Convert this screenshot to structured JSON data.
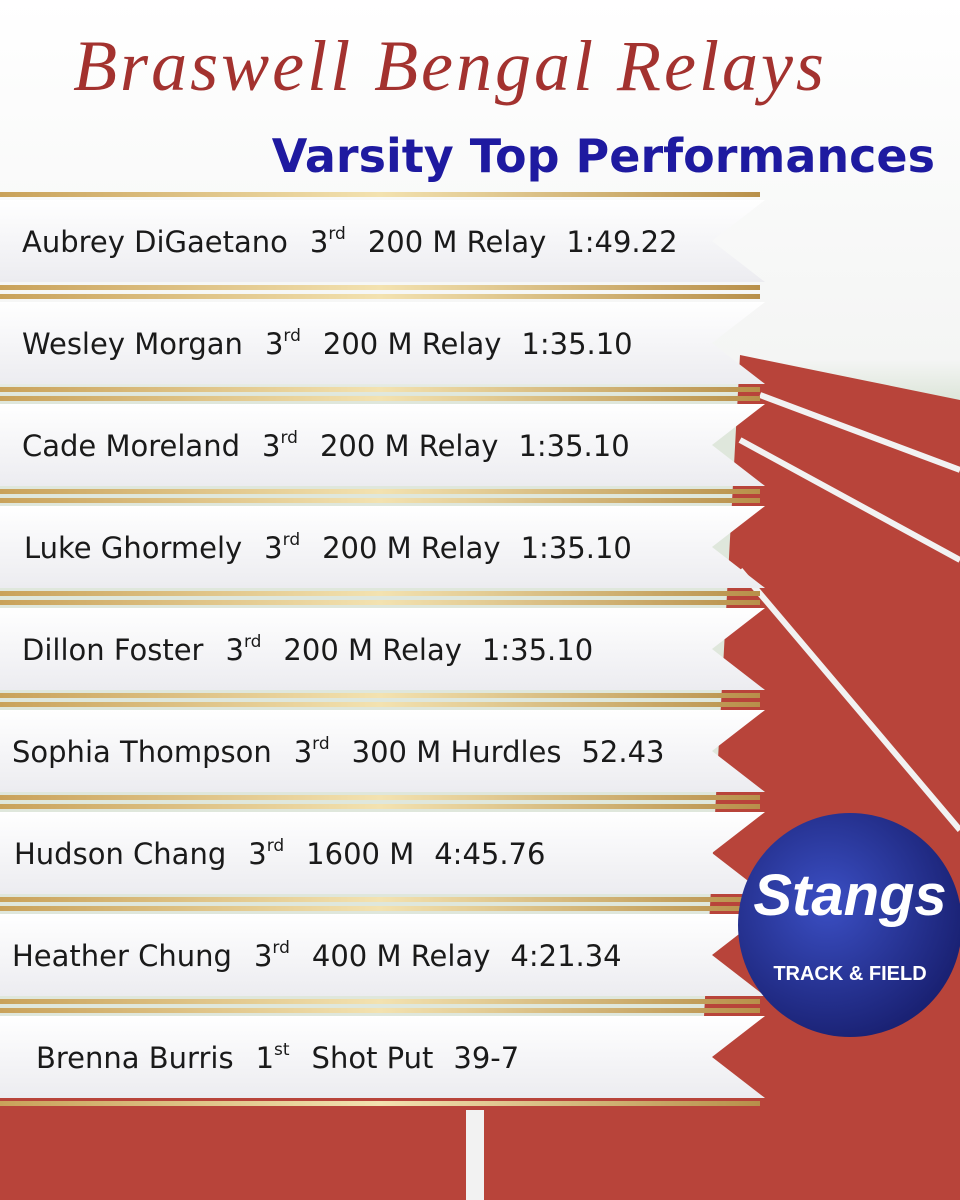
{
  "header": {
    "title": "Braswell Bengal Relays",
    "subtitle": "Varsity Top Performances"
  },
  "entries": [
    {
      "name": "Aubrey DiGaetano",
      "place": "3",
      "suffix": "rd",
      "event": "200 M Relay",
      "result": "1:49.22"
    },
    {
      "name": "Wesley Morgan",
      "place": "3",
      "suffix": "rd",
      "event": "200 M Relay",
      "result": "1:35.10"
    },
    {
      "name": "Cade Moreland",
      "place": "3",
      "suffix": "rd",
      "event": "200 M Relay",
      "result": "1:35.10"
    },
    {
      "name": "Luke Ghormely",
      "place": "3",
      "suffix": "rd",
      "event": "200 M Relay",
      "result": "1:35.10"
    },
    {
      "name": "Dillon Foster",
      "place": "3",
      "suffix": "rd",
      "event": "200 M Relay",
      "result": "1:35.10"
    },
    {
      "name": "Sophia Thompson",
      "place": "3",
      "suffix": "rd",
      "event": "300 M Hurdles",
      "result": "52.43"
    },
    {
      "name": "Hudson Chang",
      "place": "3",
      "suffix": "rd",
      "event": "1600 M",
      "result": "4:45.76"
    },
    {
      "name": "Heather Chung",
      "place": "3",
      "suffix": "rd",
      "event": "400 M Relay",
      "result": "4:21.34"
    },
    {
      "name": "Brenna Burris",
      "place": "1",
      "suffix": "st",
      "event": "Shot Put",
      "result": "39-7"
    }
  ],
  "badge": {
    "name": "Stangs",
    "caption": "TRACK & FIELD"
  }
}
